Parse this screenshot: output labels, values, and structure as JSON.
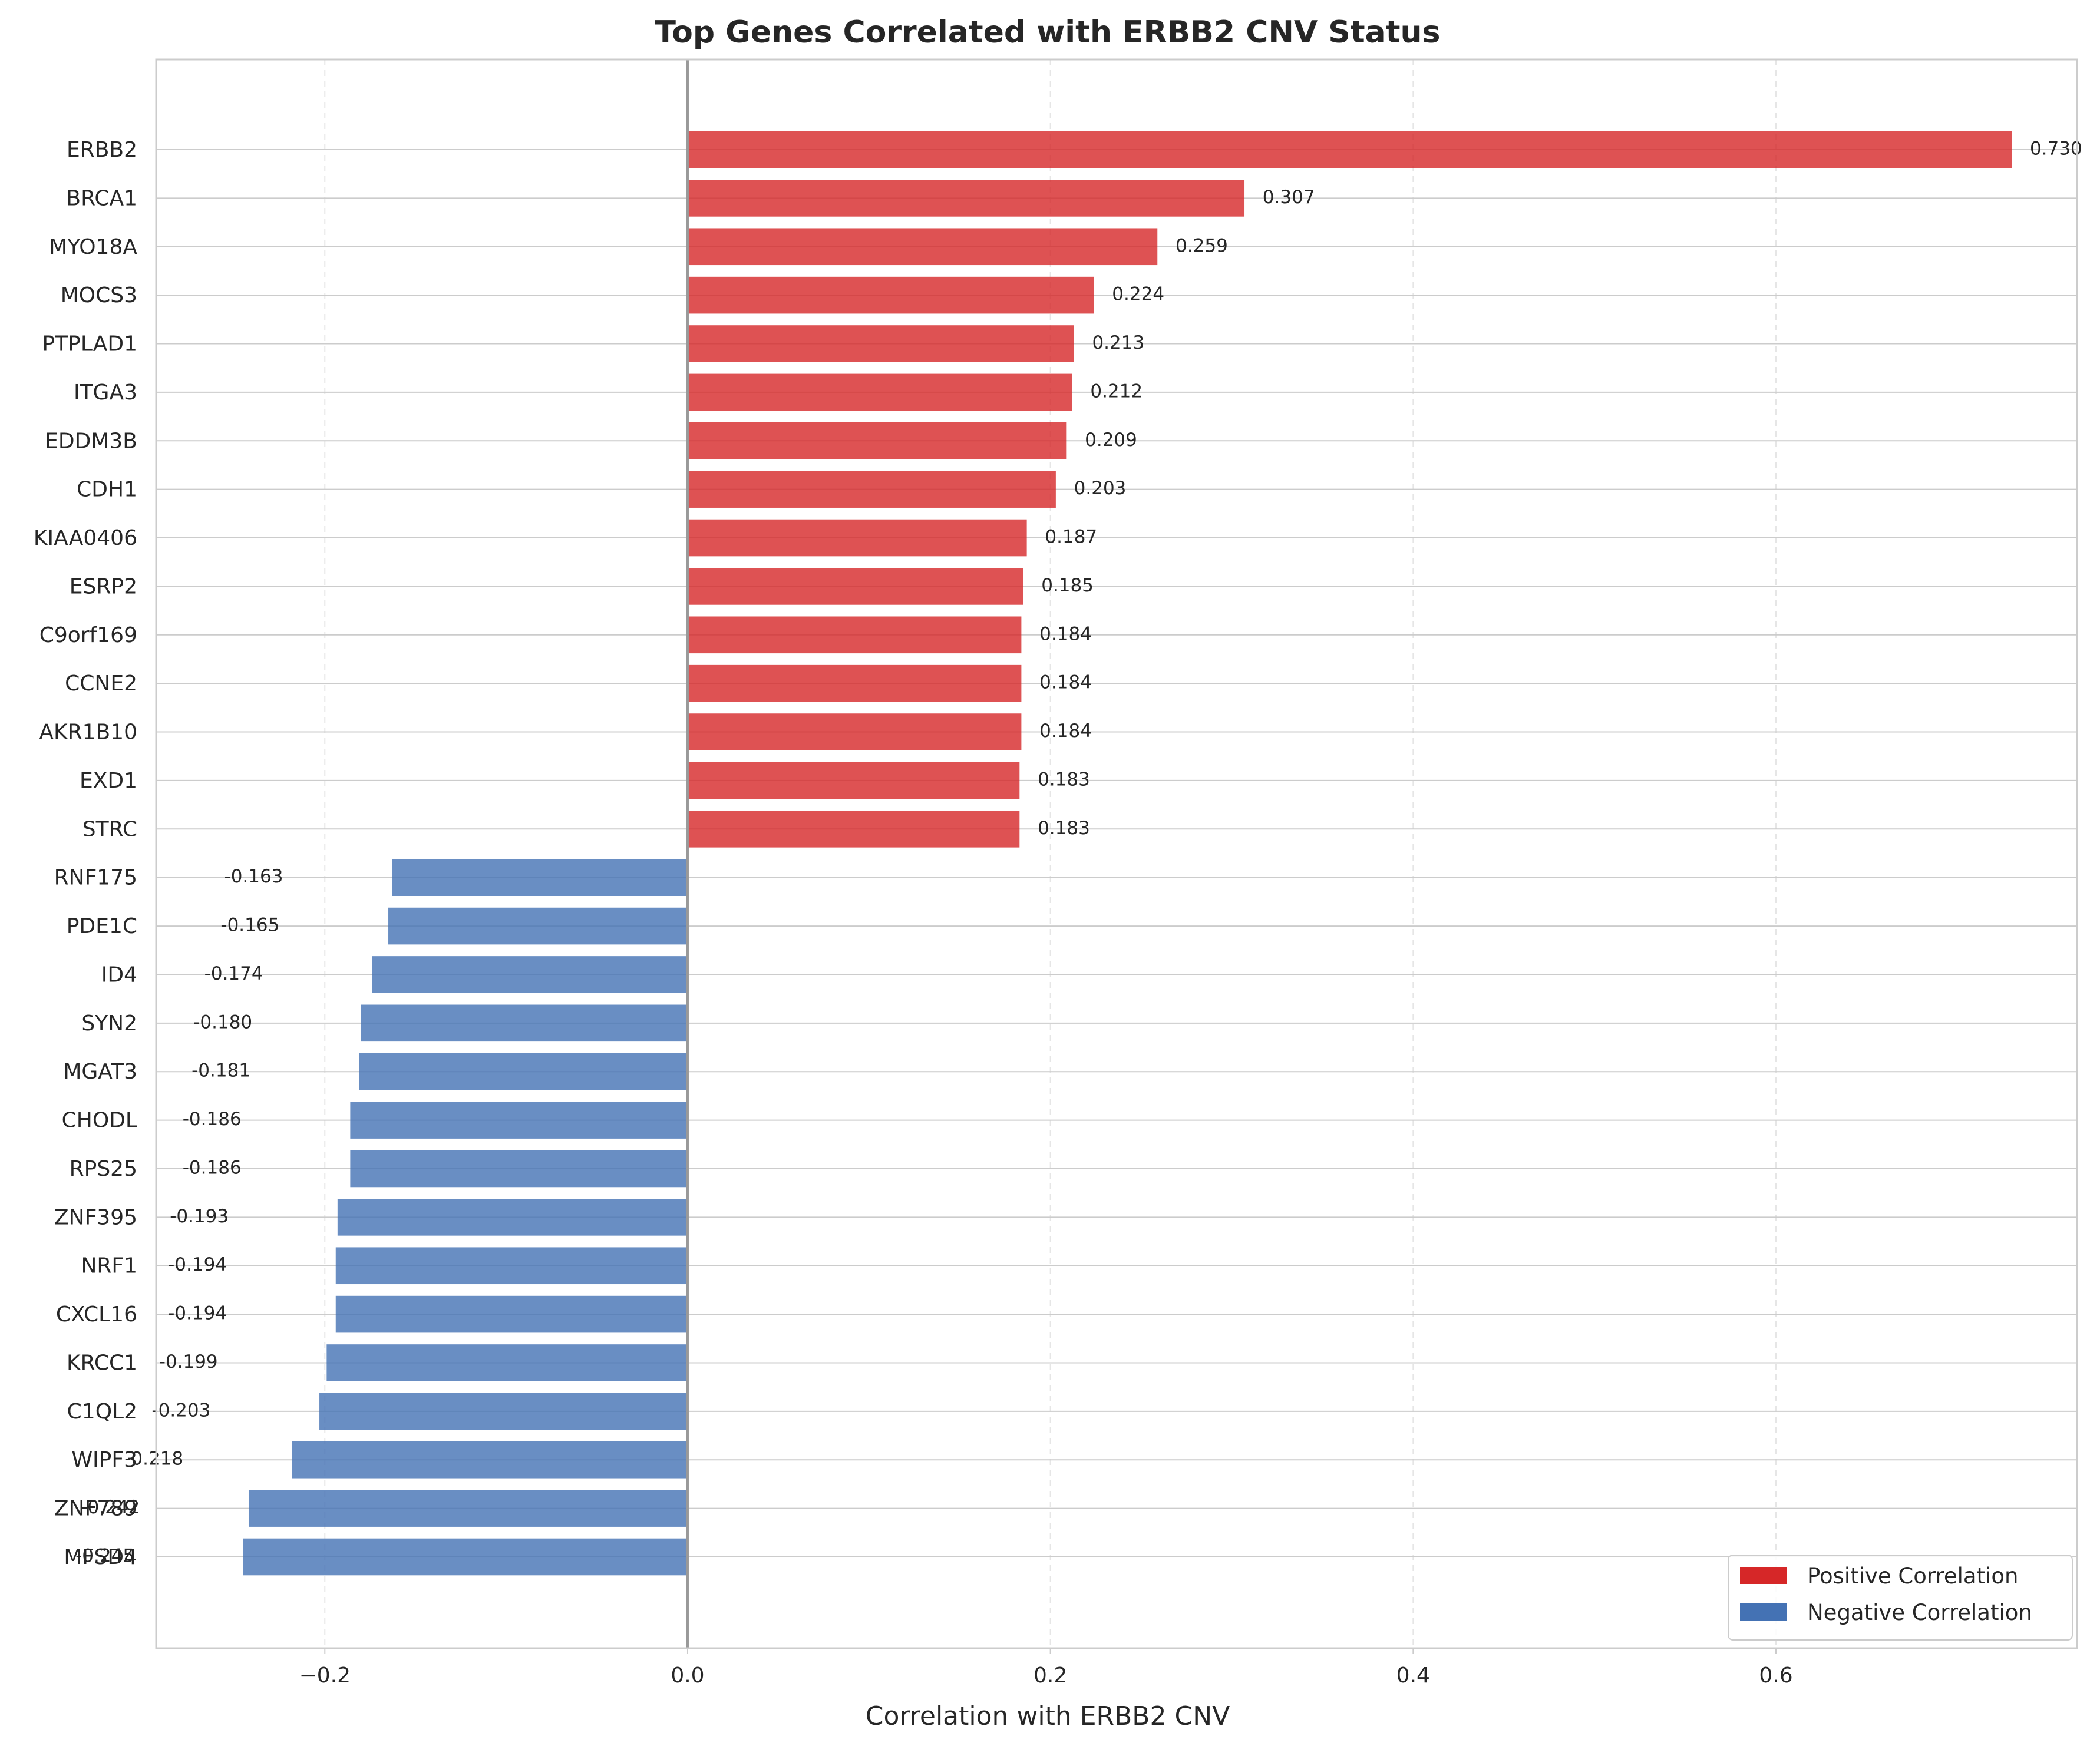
{
  "chart_data": {
    "type": "bar",
    "orientation": "horizontal",
    "title": "Top Genes Correlated with ERBB2 CNV Status",
    "xlabel": "Correlation with ERBB2 CNV",
    "ylabel": "",
    "xlim": [
      -0.293,
      0.766
    ],
    "xticks": [
      -0.2,
      0.0,
      0.2,
      0.4,
      0.6
    ],
    "xtick_labels": [
      "−0.2",
      "0.0",
      "0.2",
      "0.4",
      "0.6"
    ],
    "grid": true,
    "legend_position": "bottom-right",
    "colors": {
      "positive": "#d62728",
      "negative": "#4472b4"
    },
    "legend": [
      "Positive Correlation",
      "Negative Correlation"
    ],
    "categories": [
      "ERBB2",
      "BRCA1",
      "MYO18A",
      "MOCS3",
      "PTPLAD1",
      "ITGA3",
      "EDDM3B",
      "CDH1",
      "KIAA0406",
      "ESRP2",
      "C9orf169",
      "CCNE2",
      "AKR1B10",
      "EXD1",
      "STRC",
      "RNF175",
      "PDE1C",
      "ID4",
      "SYN2",
      "MGAT3",
      "CHODL",
      "RPS25",
      "ZNF395",
      "NRF1",
      "CXCL16",
      "KRCC1",
      "C1QL2",
      "WIPF3",
      "ZNF789",
      "MFSD4"
    ],
    "values": [
      0.73,
      0.307,
      0.259,
      0.224,
      0.213,
      0.212,
      0.209,
      0.203,
      0.187,
      0.185,
      0.184,
      0.184,
      0.184,
      0.183,
      0.183,
      -0.163,
      -0.165,
      -0.174,
      -0.18,
      -0.181,
      -0.186,
      -0.186,
      -0.193,
      -0.194,
      -0.194,
      -0.199,
      -0.203,
      -0.218,
      -0.242,
      -0.245
    ],
    "value_labels": [
      "0.730",
      "0.307",
      "0.259",
      "0.224",
      "0.213",
      "0.212",
      "0.209",
      "0.203",
      "0.187",
      "0.185",
      "0.184",
      "0.184",
      "0.184",
      "0.183",
      "0.183",
      "-0.163",
      "-0.165",
      "-0.174",
      "-0.180",
      "-0.181",
      "-0.186",
      "-0.186",
      "-0.193",
      "-0.194",
      "-0.194",
      "-0.199",
      "-0.203",
      "-0.218",
      "-0.242",
      "-0.245"
    ]
  }
}
